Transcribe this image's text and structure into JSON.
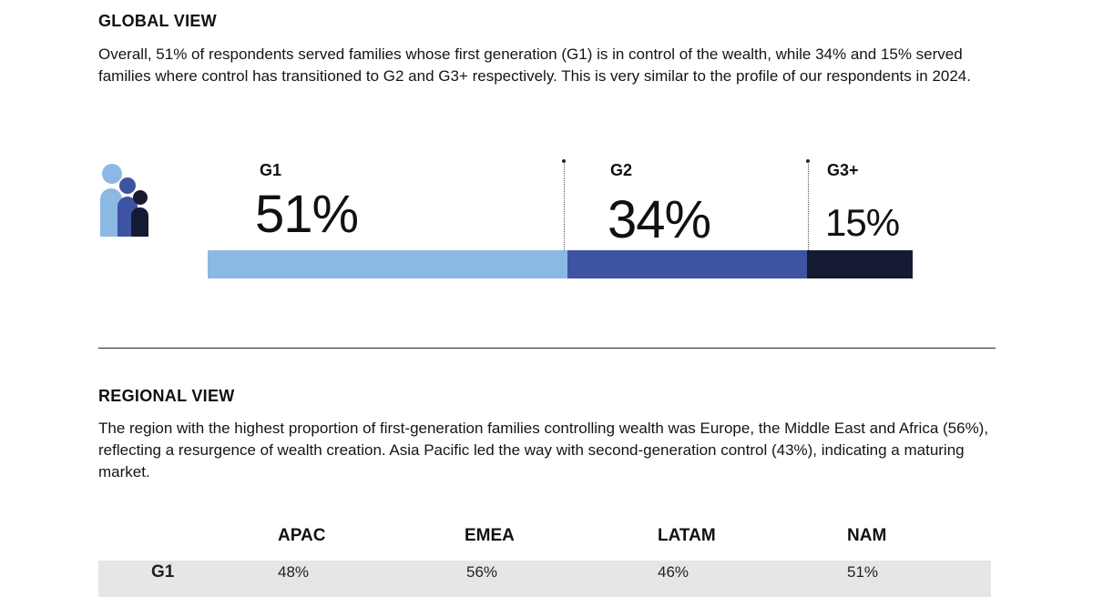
{
  "global": {
    "title": "GLOBAL VIEW",
    "paragraph": "Overall, 51% of respondents served families whose first generation (G1) is in control of the wealth, while 34% and 15% served families where control has transitioned to G2 and G3+ respectively. This is very similar to the profile of our respondents in 2024."
  },
  "generations": [
    {
      "label": "G1",
      "value_text": "51%",
      "share": 51,
      "color": "#8bb9e3"
    },
    {
      "label": "G2",
      "value_text": "34%",
      "share": 34,
      "color": "#3f53a3"
    },
    {
      "label": "G3+",
      "value_text": "15%",
      "share": 15,
      "color": "#161b33"
    }
  ],
  "icon": {
    "name": "family-icon",
    "colors": [
      "#8bb9e3",
      "#3f53a3",
      "#161b33"
    ]
  },
  "regional": {
    "title": "REGIONAL VIEW",
    "paragraph": "The region with the highest proportion of first-generation families controlling wealth was Europe, the Middle East and Africa (56%), reflecting a resurgence of wealth creation. Asia Pacific led the way with second-generation control (43%), indicating a maturing market.",
    "columns": [
      "APAC",
      "EMEA",
      "LATAM",
      "NAM"
    ],
    "rows": [
      {
        "label": "G1",
        "values": [
          "48%",
          "56%",
          "46%",
          "51%"
        ]
      }
    ]
  }
}
